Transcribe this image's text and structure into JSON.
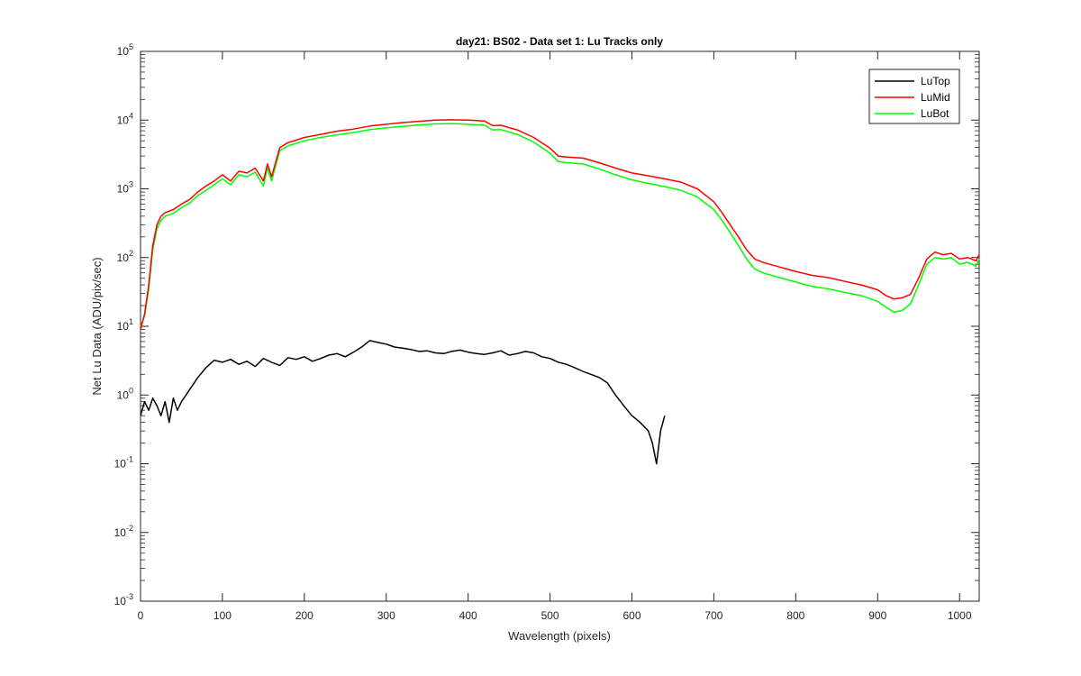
{
  "chart_data": {
    "type": "line",
    "title": "day21: BS02 - Data set 1: Lu Tracks only",
    "xlabel": "Wavelength (pixels)",
    "ylabel": "Net Lu Data (ADU/pix/sec)",
    "xlim": [
      0,
      1024
    ],
    "ylim": [
      0.001,
      100000
    ],
    "yscale": "log",
    "grid": false,
    "legend_position": "top-right",
    "x_ticks": [
      0,
      100,
      200,
      300,
      400,
      500,
      600,
      700,
      800,
      900,
      1000
    ],
    "x_tick_labels": [
      "0",
      "100",
      "200",
      "300",
      "400",
      "500",
      "600",
      "700",
      "800",
      "900",
      "1000"
    ],
    "y_ticks": [
      {
        "value": 0.001,
        "base": "10",
        "exp": "-3"
      },
      {
        "value": 0.01,
        "base": "10",
        "exp": "-2"
      },
      {
        "value": 0.1,
        "base": "10",
        "exp": "-1"
      },
      {
        "value": 1,
        "base": "10",
        "exp": "0"
      },
      {
        "value": 10,
        "base": "10",
        "exp": "1"
      },
      {
        "value": 100,
        "base": "10",
        "exp": "2"
      },
      {
        "value": 1000,
        "base": "10",
        "exp": "3"
      },
      {
        "value": 10000,
        "base": "10",
        "exp": "4"
      },
      {
        "value": 100000,
        "base": "10",
        "exp": "5"
      }
    ],
    "series": [
      {
        "name": "LuTop",
        "color": "#000000",
        "x": [
          0,
          5,
          10,
          15,
          20,
          25,
          30,
          35,
          40,
          45,
          50,
          60,
          70,
          80,
          90,
          100,
          110,
          120,
          130,
          140,
          150,
          160,
          170,
          180,
          190,
          200,
          210,
          220,
          230,
          240,
          250,
          260,
          270,
          280,
          290,
          300,
          310,
          320,
          330,
          340,
          350,
          360,
          370,
          380,
          390,
          400,
          410,
          420,
          430,
          440,
          450,
          460,
          470,
          480,
          490,
          500,
          510,
          520,
          530,
          540,
          550,
          560,
          570,
          580,
          590,
          600,
          610,
          620,
          625,
          630,
          635,
          640
        ],
        "values": [
          0.5,
          0.8,
          0.6,
          0.9,
          0.7,
          0.5,
          0.8,
          0.4,
          0.9,
          0.6,
          0.8,
          1.2,
          1.8,
          2.5,
          3.2,
          3.0,
          3.3,
          2.8,
          3.1,
          2.6,
          3.4,
          3.0,
          2.7,
          3.5,
          3.3,
          3.6,
          3.1,
          3.4,
          3.8,
          4.0,
          3.6,
          4.2,
          5.0,
          6.2,
          5.8,
          5.5,
          5.0,
          4.8,
          4.6,
          4.3,
          4.4,
          4.1,
          4.0,
          4.3,
          4.5,
          4.2,
          4.0,
          3.9,
          4.1,
          4.4,
          3.8,
          4.0,
          4.3,
          4.1,
          3.6,
          3.4,
          3.0,
          2.8,
          2.5,
          2.2,
          2.0,
          1.8,
          1.5,
          1.0,
          0.7,
          0.5,
          0.4,
          0.3,
          0.2,
          0.1,
          0.3,
          0.5
        ]
      },
      {
        "name": "LuMid",
        "color": "#ff0000",
        "x": [
          0,
          5,
          10,
          15,
          20,
          25,
          30,
          40,
          50,
          60,
          70,
          80,
          90,
          100,
          110,
          120,
          130,
          140,
          150,
          155,
          160,
          170,
          180,
          190,
          200,
          220,
          240,
          260,
          280,
          300,
          320,
          340,
          360,
          380,
          400,
          420,
          430,
          440,
          460,
          480,
          500,
          510,
          520,
          540,
          560,
          580,
          600,
          620,
          640,
          660,
          680,
          700,
          710,
          720,
          730,
          740,
          750,
          760,
          780,
          800,
          820,
          840,
          860,
          880,
          900,
          910,
          920,
          930,
          940,
          950,
          960,
          970,
          980,
          990,
          1000,
          1010,
          1020,
          1024
        ],
        "values": [
          9,
          15,
          40,
          150,
          300,
          400,
          450,
          500,
          600,
          700,
          900,
          1100,
          1300,
          1600,
          1300,
          1800,
          1700,
          2000,
          1300,
          2300,
          1500,
          4000,
          4700,
          5100,
          5600,
          6200,
          6900,
          7400,
          8200,
          8700,
          9200,
          9600,
          10000,
          10100,
          10000,
          9700,
          8300,
          8400,
          7200,
          5600,
          3900,
          3000,
          2900,
          2800,
          2400,
          2000,
          1700,
          1550,
          1400,
          1250,
          1000,
          650,
          450,
          300,
          200,
          130,
          95,
          85,
          73,
          63,
          55,
          51,
          45,
          40,
          34,
          28,
          25,
          26,
          29,
          50,
          95,
          120,
          110,
          115,
          95,
          100,
          90,
          110
        ]
      },
      {
        "name": "LuBot",
        "color": "#00ff00",
        "x": [
          0,
          5,
          10,
          15,
          20,
          25,
          30,
          40,
          50,
          60,
          70,
          80,
          90,
          100,
          110,
          120,
          130,
          140,
          150,
          155,
          160,
          170,
          180,
          190,
          200,
          220,
          240,
          260,
          280,
          300,
          320,
          340,
          360,
          380,
          400,
          420,
          430,
          440,
          460,
          480,
          500,
          510,
          520,
          540,
          560,
          580,
          600,
          620,
          640,
          660,
          680,
          700,
          710,
          720,
          730,
          740,
          750,
          760,
          780,
          800,
          820,
          840,
          860,
          880,
          900,
          910,
          920,
          930,
          940,
          950,
          960,
          970,
          980,
          990,
          1000,
          1010,
          1020,
          1024
        ],
        "values": [
          10,
          14,
          35,
          130,
          260,
          350,
          400,
          440,
          530,
          620,
          800,
          950,
          1150,
          1400,
          1150,
          1600,
          1500,
          1750,
          1100,
          2000,
          1300,
          3600,
          4200,
          4600,
          5000,
          5600,
          6100,
          6600,
          7300,
          7700,
          8100,
          8500,
          8800,
          8900,
          8700,
          8400,
          7200,
          7300,
          6200,
          4800,
          3300,
          2500,
          2400,
          2300,
          1950,
          1600,
          1350,
          1200,
          1080,
          950,
          760,
          500,
          350,
          230,
          150,
          95,
          68,
          60,
          51,
          44,
          38,
          35,
          31,
          28,
          23,
          19,
          16,
          17,
          21,
          40,
          80,
          100,
          95,
          100,
          80,
          85,
          75,
          95
        ]
      }
    ]
  }
}
